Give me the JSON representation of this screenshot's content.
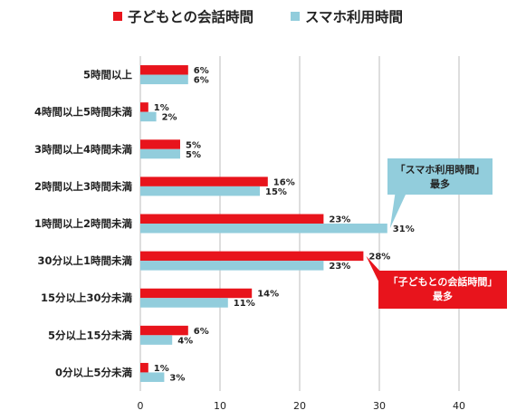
{
  "chart_data": {
    "type": "bar",
    "orientation": "horizontal",
    "categories": [
      "5時間以上",
      "4時間以上5時間未満",
      "3時間以上4時間未満",
      "2時間以上3時間未満",
      "1時間以上2時間未満",
      "30分以上1時間未満",
      "15分以上30分未満",
      "5分以上15分未満",
      "0分以上5分未満"
    ],
    "series": [
      {
        "name": "子どもとの会話時間",
        "color": "#e8141c",
        "values": [
          6,
          1,
          5,
          16,
          23,
          28,
          14,
          6,
          1
        ]
      },
      {
        "name": "スマホ利用時間",
        "color": "#92cddc",
        "values": [
          6,
          2,
          5,
          15,
          31,
          23,
          11,
          4,
          3
        ]
      }
    ],
    "value_suffix": "%",
    "xlim": [
      0,
      40
    ],
    "xticks": [
      0,
      10,
      20,
      30,
      40
    ],
    "grid": "vertical",
    "legend_position": "top",
    "annotations": [
      {
        "line1": "「スマホ利用時間」",
        "line2": "最多",
        "series_index": 1,
        "category_index": 4,
        "fill": "#92cddc",
        "text_color": "#222222"
      },
      {
        "line1": "「子どもとの会話時間」",
        "line2": "最多",
        "series_index": 0,
        "category_index": 5,
        "fill": "#e8141c",
        "text_color": "#ffffff"
      }
    ]
  }
}
